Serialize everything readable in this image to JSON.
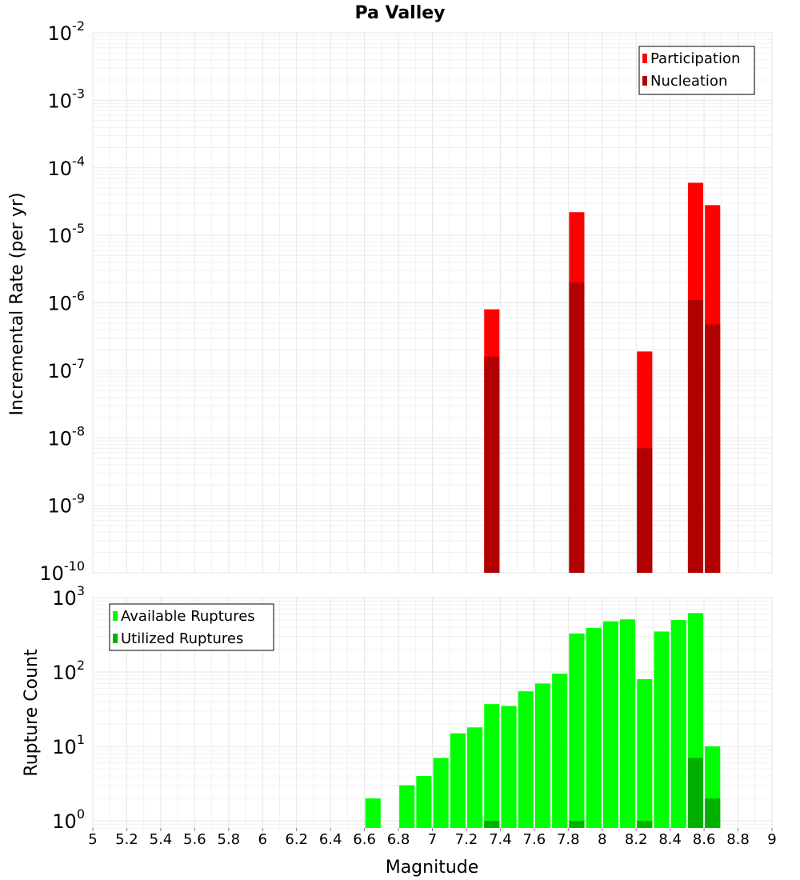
{
  "title": "Pa Valley",
  "chart_data": [
    {
      "type": "bar",
      "ylabel": "Incremental Rate (per yr)",
      "yscale": "log",
      "xlim": [
        5,
        9
      ],
      "ylim": [
        1e-10,
        0.01
      ],
      "y_tick_labels": [
        {
          "base": "10",
          "exp": "-10"
        },
        {
          "base": "10",
          "exp": "-9"
        },
        {
          "base": "10",
          "exp": "-8"
        },
        {
          "base": "10",
          "exp": "-7"
        },
        {
          "base": "10",
          "exp": "-6"
        },
        {
          "base": "10",
          "exp": "-5"
        },
        {
          "base": "10",
          "exp": "-4"
        },
        {
          "base": "10",
          "exp": "-3"
        },
        {
          "base": "10",
          "exp": "-2"
        }
      ],
      "grid": true,
      "legend_position": "top-right",
      "bar_width": 0.09,
      "series": [
        {
          "name": "Participation",
          "color": "#ff0000",
          "x": [
            7.35,
            7.85,
            8.25,
            8.55,
            8.65
          ],
          "values": [
            8e-07,
            2.2e-05,
            1.9e-07,
            6e-05,
            2.8e-05
          ]
        },
        {
          "name": "Nucleation",
          "color": "#b20000",
          "x": [
            7.35,
            7.85,
            8.25,
            8.55,
            8.65
          ],
          "values": [
            1.6e-07,
            2e-06,
            7e-09,
            1.1e-06,
            4.8e-07
          ]
        }
      ]
    },
    {
      "type": "bar",
      "xlabel": "Magnitude",
      "ylabel": "Rupture Count",
      "yscale": "log",
      "xlim": [
        5,
        9
      ],
      "ylim": [
        0.8,
        1000
      ],
      "x_tick_labels": [
        "5",
        "5.2",
        "5.4",
        "5.6",
        "5.8",
        "6",
        "6.2",
        "6.4",
        "6.6",
        "6.8",
        "7",
        "7.2",
        "7.4",
        "7.6",
        "7.8",
        "8",
        "8.2",
        "8.4",
        "8.6",
        "8.8",
        "9"
      ],
      "y_tick_labels": [
        {
          "base": "10",
          "exp": "0"
        },
        {
          "base": "10",
          "exp": "1"
        },
        {
          "base": "10",
          "exp": "2"
        },
        {
          "base": "10",
          "exp": "3"
        }
      ],
      "grid": true,
      "legend_position": "top-left",
      "bar_width": 0.09,
      "series": [
        {
          "name": "Available Ruptures",
          "color": "#00ff00",
          "x": [
            6.65,
            6.85,
            6.95,
            7.05,
            7.15,
            7.25,
            7.35,
            7.45,
            7.55,
            7.65,
            7.75,
            7.85,
            7.95,
            8.05,
            8.15,
            8.25,
            8.35,
            8.45,
            8.55,
            8.65
          ],
          "values": [
            2,
            3,
            4,
            7,
            15,
            18,
            37,
            35,
            55,
            70,
            95,
            330,
            390,
            480,
            510,
            80,
            350,
            500,
            620,
            10
          ]
        },
        {
          "name": "Utilized Ruptures",
          "color": "#00b000",
          "x": [
            7.35,
            7.85,
            8.25,
            8.55,
            8.65
          ],
          "values": [
            1,
            1,
            1,
            7,
            2
          ]
        }
      ]
    }
  ]
}
